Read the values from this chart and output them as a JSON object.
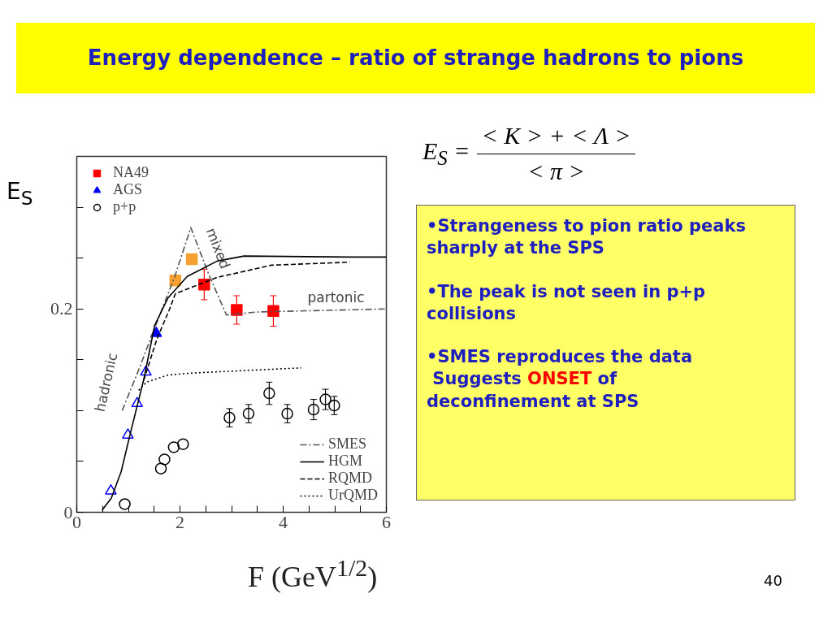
{
  "chart_data": {
    "type": "scatter",
    "title": "Energy dependence – ratio of strange hadrons to pions",
    "xlabel": "F (GeV$^{1/2}$)",
    "ylabel": "E$_{S}$",
    "xlim": [
      0,
      6
    ],
    "ylim": [
      0,
      0.35
    ],
    "xticks": [
      0,
      {
        "value": 0.5,
        "label": null
      },
      {
        "value": 1,
        "label": null
      },
      {
        "value": 1.5,
        "label": null
      },
      2,
      {
        "value": 2.5,
        "label": null
      },
      {
        "value": 3,
        "label": null
      },
      {
        "value": 3.5,
        "label": null
      },
      4,
      {
        "value": 4.5,
        "label": null
      },
      {
        "value": 5,
        "label": null
      },
      {
        "value": 5.5,
        "label": null
      },
      6
    ],
    "yticks": [
      0,
      {
        "value": 0.05,
        "label": null
      },
      {
        "value": 0.1,
        "label": null
      },
      {
        "value": 0.15,
        "label": null
      },
      0.2,
      {
        "value": 0.25,
        "label": null
      },
      {
        "value": 0.3,
        "label": null
      }
    ],
    "grid": false,
    "legend": "top left",
    "series": [
      {
        "name": "NA49",
        "marker": "square",
        "color": "#ff0000",
        "x": [
          2.47,
          3.1,
          3.81
        ],
        "values": [
          0.224,
          0.199,
          0.198
        ],
        "errors": [
          0.015,
          0.014,
          0.015
        ]
      },
      {
        "marker": "square",
        "color": "#f5a030",
        "x": [
          1.91,
          2.23
        ],
        "values": [
          0.228,
          0.249
        ]
      },
      {
        "name": "AGS",
        "marker": "triangle",
        "color": "#0000ff",
        "x": [
          1.54
        ],
        "values": [
          0.176
        ]
      },
      {
        "marker": "triangle_open",
        "color": "#0000ff",
        "x": [
          0.66,
          0.99,
          1.17,
          1.34
        ],
        "values": [
          0.021,
          0.076,
          0.107,
          0.138
        ]
      },
      {
        "name": "p+p",
        "marker": "circle_open",
        "color": "#000000",
        "x": [
          0.93,
          1.63,
          1.7,
          1.88,
          2.06,
          2.96,
          3.33,
          3.73,
          4.08,
          4.59,
          4.82,
          4.99
        ],
        "values": [
          0.008,
          0.043,
          0.052,
          0.064,
          0.067,
          0.093,
          0.097,
          0.117,
          0.097,
          0.101,
          0.111,
          0.105
        ],
        "errors": [
          null,
          null,
          null,
          null,
          null,
          0.009,
          0.009,
          0.011,
          0.009,
          0.01,
          0.01,
          0.009
        ]
      },
      {
        "name": "SMES",
        "type": "line",
        "line_style": "dashdot",
        "color": "#555555",
        "x": [
          0.88,
          1.2,
          1.5,
          1.9,
          2.21,
          2.55,
          2.9,
          3.5,
          6.0
        ],
        "values": [
          0.1,
          0.14,
          0.18,
          0.232,
          0.28,
          0.235,
          0.194,
          0.197,
          0.2
        ]
      },
      {
        "name": "HGM",
        "type": "line",
        "line_style": "solid",
        "color": "#000000",
        "x": [
          0.49,
          0.67,
          0.86,
          1.04,
          1.3,
          1.51,
          1.77,
          2.14,
          2.72,
          3.24,
          5.29,
          6.0
        ],
        "values": [
          0.002,
          0.014,
          0.04,
          0.078,
          0.131,
          0.184,
          0.211,
          0.232,
          0.247,
          0.252,
          0.251,
          0.251
        ]
      },
      {
        "name": "RQMD",
        "type": "line",
        "line_style": "dashed",
        "color": "#000000",
        "x": [
          1.3,
          1.55,
          1.8,
          1.91,
          2.72,
          3.77,
          5.29
        ],
        "values": [
          0.13,
          0.17,
          0.2,
          0.215,
          0.231,
          0.243,
          0.246
        ]
      },
      {
        "name": "UrQMD",
        "type": "line",
        "line_style": "dotted",
        "color": "#000000",
        "x": [
          1.2,
          1.35,
          1.77,
          2.25,
          4.35
        ],
        "values": [
          0.12,
          0.128,
          0.135,
          0.137,
          0.142
        ]
      }
    ],
    "annotations": [
      "hadronic",
      "mixed",
      "partonic",
      "E$_{S}$ =",
      "< K > + < Λ >",
      "< π >",
      "•Strangeness to pion ratio peaks sharply at the SPS",
      "•The peak is not seen in p+p collisions",
      "•SMES reproduces the data",
      "Suggests",
      "ONSET",
      "of deconfinement at SPS",
      "40"
    ]
  }
}
